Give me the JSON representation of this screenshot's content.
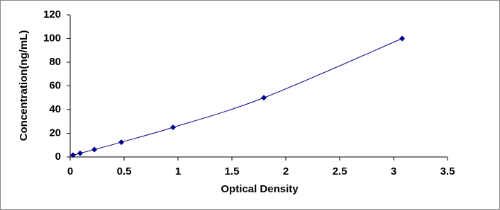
{
  "chart_data": {
    "type": "line",
    "x_label": "Optical Density",
    "y_label": "Concentration(ng/mL)",
    "x": [
      0.026,
      0.092,
      0.224,
      0.474,
      0.954,
      1.796,
      3.079
    ],
    "values": [
      1.56,
      3.12,
      6.25,
      12.5,
      25,
      50,
      100
    ],
    "color": "#00008b",
    "xlim": [
      0,
      3.5
    ],
    "xticks": [
      0,
      0.5,
      1,
      1.5,
      2,
      2.5,
      3,
      3.5
    ],
    "ylim": [
      0,
      120
    ],
    "yticks": [
      0,
      20,
      40,
      60,
      80,
      100,
      120
    ],
    "grid": false
  }
}
